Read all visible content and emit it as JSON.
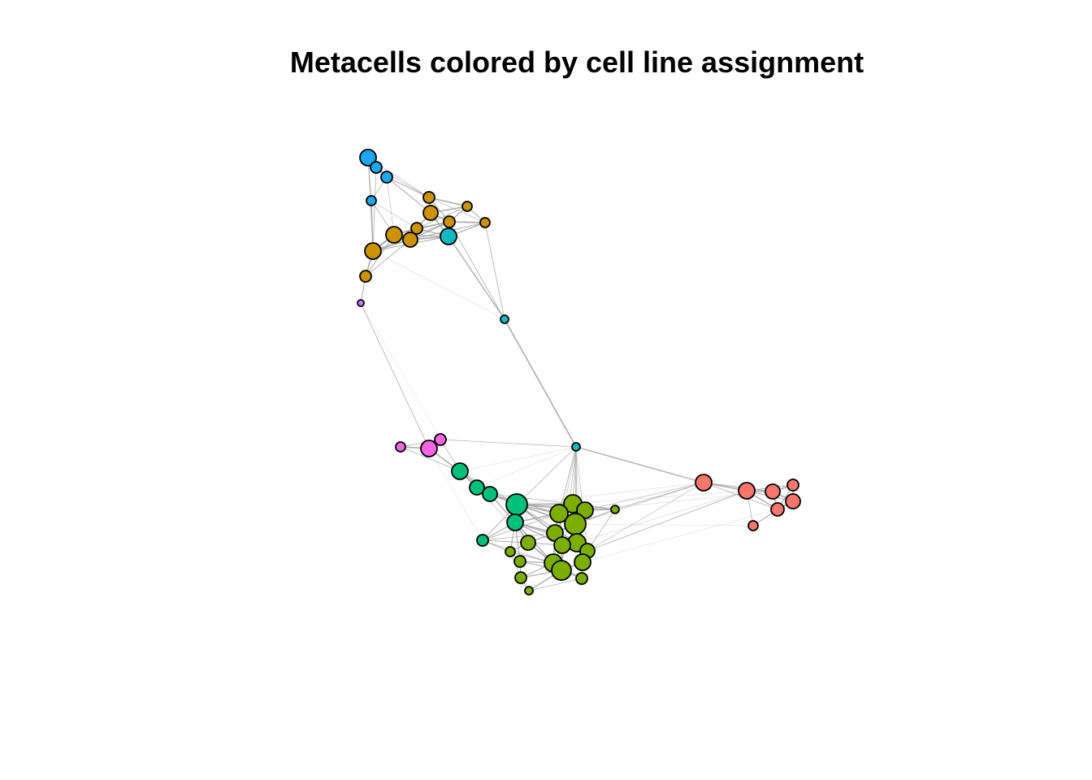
{
  "title": "Metacells colored by cell line assignment",
  "colors": {
    "edge": "#a6a6a6",
    "node_stroke": "#000000"
  },
  "groups": [
    {
      "key": "blue",
      "color": "#1ba6ee"
    },
    {
      "key": "gold",
      "color": "#cc9200"
    },
    {
      "key": "teal",
      "color": "#12b8c4"
    },
    {
      "key": "violet",
      "color": "#c77cff"
    },
    {
      "key": "magenta",
      "color": "#f564e3"
    },
    {
      "key": "green",
      "color": "#00c07c"
    },
    {
      "key": "olive",
      "color": "#7cae00"
    },
    {
      "key": "salmon",
      "color": "#f8766d"
    }
  ]
}
